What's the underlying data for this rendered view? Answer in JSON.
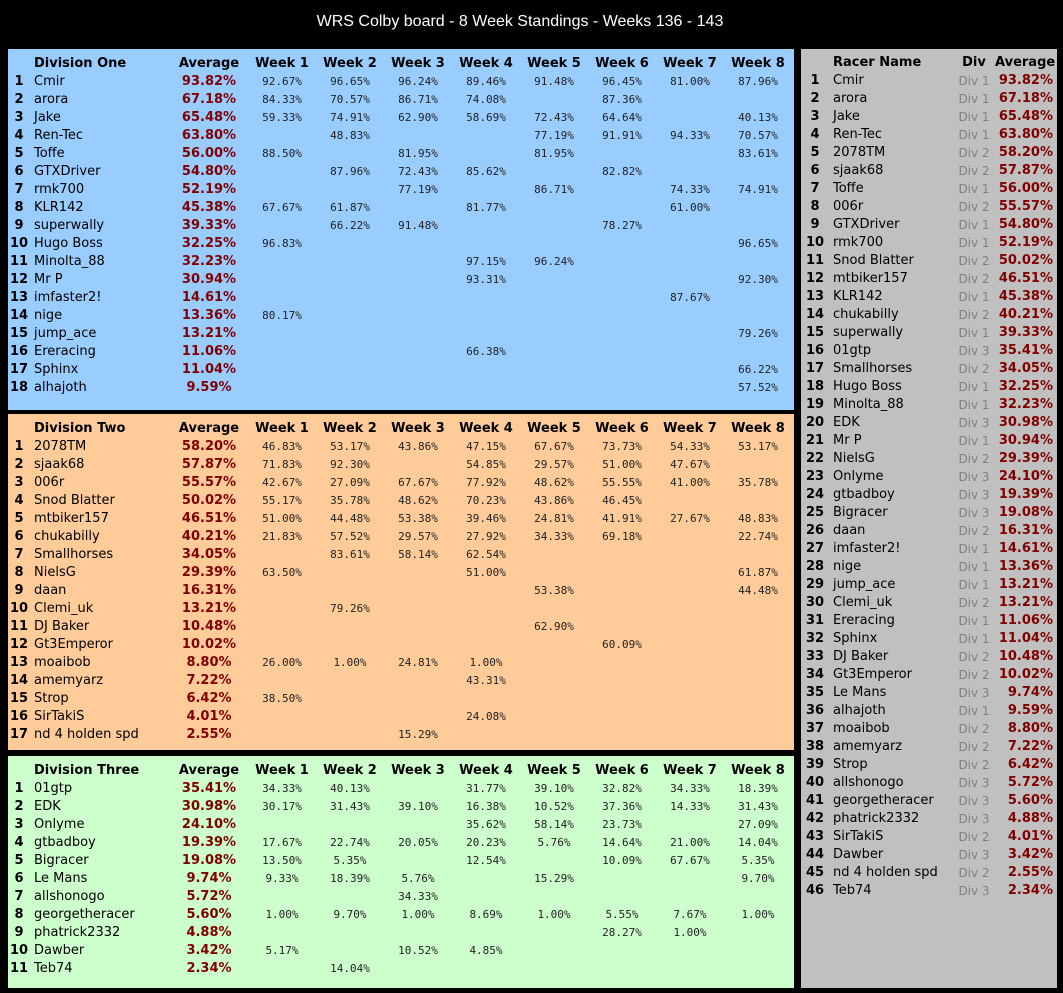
{
  "title": "WRS Colby board - 8 Week Standings - Weeks 136 - 143",
  "colors": {
    "div1": "#99ccff",
    "div2": "#ffcc99",
    "div3": "#ccffcc",
    "overall": "#c0c0c0",
    "avg": "#800000"
  },
  "division_headers": {
    "average": "Average",
    "weeks": [
      "Week 1",
      "Week 2",
      "Week 3",
      "Week 4",
      "Week 5",
      "Week 6",
      "Week 7",
      "Week 8"
    ]
  },
  "divisions": [
    {
      "name": "Division One",
      "rows": [
        [
          "1",
          "Cmir",
          "93.82%",
          "92.67%",
          "96.65%",
          "96.24%",
          "89.46%",
          "91.48%",
          "96.45%",
          "81.00%",
          "87.96%"
        ],
        [
          "2",
          "arora",
          "67.18%",
          "84.33%",
          "70.57%",
          "86.71%",
          "74.08%",
          "",
          "87.36%",
          "",
          ""
        ],
        [
          "3",
          "Jake",
          "65.48%",
          "59.33%",
          "74.91%",
          "62.90%",
          "58.69%",
          "72.43%",
          "64.64%",
          "",
          "40.13%"
        ],
        [
          "4",
          "Ren-Tec",
          "63.80%",
          "",
          "48.83%",
          "",
          "",
          "77.19%",
          "91.91%",
          "94.33%",
          "70.57%"
        ],
        [
          "5",
          "Toffe",
          "56.00%",
          "88.50%",
          "",
          "81.95%",
          "",
          "81.95%",
          "",
          "",
          "83.61%"
        ],
        [
          "6",
          "GTXDriver",
          "54.80%",
          "",
          "87.96%",
          "72.43%",
          "85.62%",
          "",
          "82.82%",
          "",
          ""
        ],
        [
          "7",
          "rmk700",
          "52.19%",
          "",
          "",
          "77.19%",
          "",
          "86.71%",
          "",
          "74.33%",
          "74.91%"
        ],
        [
          "8",
          "KLR142",
          "45.38%",
          "67.67%",
          "61.87%",
          "",
          "81.77%",
          "",
          "",
          "61.00%",
          ""
        ],
        [
          "9",
          "superwally",
          "39.33%",
          "",
          "66.22%",
          "91.48%",
          "",
          "",
          "78.27%",
          "",
          ""
        ],
        [
          "10",
          "Hugo Boss",
          "32.25%",
          "96.83%",
          "",
          "",
          "",
          "",
          "",
          "",
          "96.65%"
        ],
        [
          "11",
          "Minolta_88",
          "32.23%",
          "",
          "",
          "",
          "97.15%",
          "96.24%",
          "",
          "",
          ""
        ],
        [
          "12",
          "Mr P",
          "30.94%",
          "",
          "",
          "",
          "93.31%",
          "",
          "",
          "",
          "92.30%"
        ],
        [
          "13",
          "imfaster2!",
          "14.61%",
          "",
          "",
          "",
          "",
          "",
          "",
          "87.67%",
          ""
        ],
        [
          "14",
          "nige",
          "13.36%",
          "80.17%",
          "",
          "",
          "",
          "",
          "",
          "",
          ""
        ],
        [
          "15",
          "jump_ace",
          "13.21%",
          "",
          "",
          "",
          "",
          "",
          "",
          "",
          "79.26%"
        ],
        [
          "16",
          "Ereracing",
          "11.06%",
          "",
          "",
          "",
          "66.38%",
          "",
          "",
          "",
          ""
        ],
        [
          "17",
          "Sphinx",
          "11.04%",
          "",
          "",
          "",
          "",
          "",
          "",
          "",
          "66.22%"
        ],
        [
          "18",
          "alhajoth",
          "9.59%",
          "",
          "",
          "",
          "",
          "",
          "",
          "",
          "57.52%"
        ]
      ]
    },
    {
      "name": "Division Two",
      "rows": [
        [
          "1",
          "2078TM",
          "58.20%",
          "46.83%",
          "53.17%",
          "43.86%",
          "47.15%",
          "67.67%",
          "73.73%",
          "54.33%",
          "53.17%"
        ],
        [
          "2",
          "sjaak68",
          "57.87%",
          "71.83%",
          "92.30%",
          "",
          "54.85%",
          "29.57%",
          "51.00%",
          "47.67%",
          ""
        ],
        [
          "3",
          "006r",
          "55.57%",
          "42.67%",
          "27.09%",
          "67.67%",
          "77.92%",
          "48.62%",
          "55.55%",
          "41.00%",
          "35.78%"
        ],
        [
          "4",
          "Snod Blatter",
          "50.02%",
          "55.17%",
          "35.78%",
          "48.62%",
          "70.23%",
          "43.86%",
          "46.45%",
          "",
          ""
        ],
        [
          "5",
          "mtbiker157",
          "46.51%",
          "51.00%",
          "44.48%",
          "53.38%",
          "39.46%",
          "24.81%",
          "41.91%",
          "27.67%",
          "48.83%"
        ],
        [
          "6",
          "chukabilly",
          "40.21%",
          "21.83%",
          "57.52%",
          "29.57%",
          "27.92%",
          "34.33%",
          "69.18%",
          "",
          "22.74%"
        ],
        [
          "7",
          "Smallhorses",
          "34.05%",
          "",
          "83.61%",
          "58.14%",
          "62.54%",
          "",
          "",
          "",
          ""
        ],
        [
          "8",
          "NielsG",
          "29.39%",
          "63.50%",
          "",
          "",
          "51.00%",
          "",
          "",
          "",
          "61.87%"
        ],
        [
          "9",
          "daan",
          "16.31%",
          "",
          "",
          "",
          "",
          "53.38%",
          "",
          "",
          "44.48%"
        ],
        [
          "10",
          "Clemi_uk",
          "13.21%",
          "",
          "79.26%",
          "",
          "",
          "",
          "",
          "",
          ""
        ],
        [
          "11",
          "DJ Baker",
          "10.48%",
          "",
          "",
          "",
          "",
          "62.90%",
          "",
          "",
          ""
        ],
        [
          "12",
          "Gt3Emperor",
          "10.02%",
          "",
          "",
          "",
          "",
          "",
          "60.09%",
          "",
          ""
        ],
        [
          "13",
          "moaibob",
          "8.80%",
          "26.00%",
          "1.00%",
          "24.81%",
          "1.00%",
          "",
          "",
          "",
          ""
        ],
        [
          "14",
          "amemyarz",
          "7.22%",
          "",
          "",
          "",
          "43.31%",
          "",
          "",
          "",
          ""
        ],
        [
          "15",
          "Strop",
          "6.42%",
          "38.50%",
          "",
          "",
          "",
          "",
          "",
          "",
          ""
        ],
        [
          "16",
          "SirTakiS",
          "4.01%",
          "",
          "",
          "",
          "24.08%",
          "",
          "",
          "",
          ""
        ],
        [
          "17",
          "nd 4 holden spd",
          "2.55%",
          "",
          "",
          "15.29%",
          "",
          "",
          "",
          "",
          ""
        ]
      ]
    },
    {
      "name": "Division Three",
      "rows": [
        [
          "1",
          "01gtp",
          "35.41%",
          "34.33%",
          "40.13%",
          "",
          "31.77%",
          "39.10%",
          "32.82%",
          "34.33%",
          "18.39%"
        ],
        [
          "2",
          "EDK",
          "30.98%",
          "30.17%",
          "31.43%",
          "39.10%",
          "16.38%",
          "10.52%",
          "37.36%",
          "14.33%",
          "31.43%"
        ],
        [
          "3",
          "Onlyme",
          "24.10%",
          "",
          "",
          "",
          "35.62%",
          "58.14%",
          "23.73%",
          "",
          "27.09%"
        ],
        [
          "4",
          "gtbadboy",
          "19.39%",
          "17.67%",
          "22.74%",
          "20.05%",
          "20.23%",
          "5.76%",
          "14.64%",
          "21.00%",
          "14.04%"
        ],
        [
          "5",
          "Bigracer",
          "19.08%",
          "13.50%",
          "5.35%",
          "",
          "12.54%",
          "",
          "10.09%",
          "67.67%",
          "5.35%"
        ],
        [
          "6",
          "Le Mans",
          "9.74%",
          "9.33%",
          "18.39%",
          "5.76%",
          "",
          "15.29%",
          "",
          "",
          "9.70%"
        ],
        [
          "7",
          "allshonogo",
          "5.72%",
          "",
          "",
          "34.33%",
          "",
          "",
          "",
          "",
          ""
        ],
        [
          "8",
          "georgetheracer",
          "5.60%",
          "1.00%",
          "9.70%",
          "1.00%",
          "8.69%",
          "1.00%",
          "5.55%",
          "7.67%",
          "1.00%"
        ],
        [
          "9",
          "phatrick2332",
          "4.88%",
          "",
          "",
          "",
          "",
          "",
          "28.27%",
          "1.00%",
          ""
        ],
        [
          "10",
          "Dawber",
          "3.42%",
          "5.17%",
          "",
          "10.52%",
          "4.85%",
          "",
          "",
          "",
          ""
        ],
        [
          "11",
          "Teb74",
          "2.34%",
          "",
          "14.04%",
          "",
          "",
          "",
          "",
          "",
          ""
        ]
      ]
    }
  ],
  "overall": {
    "headers": {
      "name": "Racer Name",
      "div": "Div",
      "average": "Average"
    },
    "rows": [
      [
        "1",
        "Cmir",
        "Div 1",
        "93.82%"
      ],
      [
        "2",
        "arora",
        "Div 1",
        "67.18%"
      ],
      [
        "3",
        "Jake",
        "Div 1",
        "65.48%"
      ],
      [
        "4",
        "Ren-Tec",
        "Div 1",
        "63.80%"
      ],
      [
        "5",
        "2078TM",
        "Div 2",
        "58.20%"
      ],
      [
        "6",
        "sjaak68",
        "Div 2",
        "57.87%"
      ],
      [
        "7",
        "Toffe",
        "Div 1",
        "56.00%"
      ],
      [
        "8",
        "006r",
        "Div 2",
        "55.57%"
      ],
      [
        "9",
        "GTXDriver",
        "Div 1",
        "54.80%"
      ],
      [
        "10",
        "rmk700",
        "Div 1",
        "52.19%"
      ],
      [
        "11",
        "Snod Blatter",
        "Div 2",
        "50.02%"
      ],
      [
        "12",
        "mtbiker157",
        "Div 2",
        "46.51%"
      ],
      [
        "13",
        "KLR142",
        "Div 1",
        "45.38%"
      ],
      [
        "14",
        "chukabilly",
        "Div 2",
        "40.21%"
      ],
      [
        "15",
        "superwally",
        "Div 1",
        "39.33%"
      ],
      [
        "16",
        "01gtp",
        "Div 3",
        "35.41%"
      ],
      [
        "17",
        "Smallhorses",
        "Div 2",
        "34.05%"
      ],
      [
        "18",
        "Hugo Boss",
        "Div 1",
        "32.25%"
      ],
      [
        "19",
        "Minolta_88",
        "Div 1",
        "32.23%"
      ],
      [
        "20",
        "EDK",
        "Div 3",
        "30.98%"
      ],
      [
        "21",
        "Mr P",
        "Div 1",
        "30.94%"
      ],
      [
        "22",
        "NielsG",
        "Div 2",
        "29.39%"
      ],
      [
        "23",
        "Onlyme",
        "Div 3",
        "24.10%"
      ],
      [
        "24",
        "gtbadboy",
        "Div 3",
        "19.39%"
      ],
      [
        "25",
        "Bigracer",
        "Div 3",
        "19.08%"
      ],
      [
        "26",
        "daan",
        "Div 2",
        "16.31%"
      ],
      [
        "27",
        "imfaster2!",
        "Div 1",
        "14.61%"
      ],
      [
        "28",
        "nige",
        "Div 1",
        "13.36%"
      ],
      [
        "29",
        "jump_ace",
        "Div 1",
        "13.21%"
      ],
      [
        "30",
        "Clemi_uk",
        "Div 2",
        "13.21%"
      ],
      [
        "31",
        "Ereracing",
        "Div 1",
        "11.06%"
      ],
      [
        "32",
        "Sphinx",
        "Div 1",
        "11.04%"
      ],
      [
        "33",
        "DJ Baker",
        "Div 2",
        "10.48%"
      ],
      [
        "34",
        "Gt3Emperor",
        "Div 2",
        "10.02%"
      ],
      [
        "35",
        "Le Mans",
        "Div 3",
        "9.74%"
      ],
      [
        "36",
        "alhajoth",
        "Div 1",
        "9.59%"
      ],
      [
        "37",
        "moaibob",
        "Div 2",
        "8.80%"
      ],
      [
        "38",
        "amemyarz",
        "Div 2",
        "7.22%"
      ],
      [
        "39",
        "Strop",
        "Div 2",
        "6.42%"
      ],
      [
        "40",
        "allshonogo",
        "Div 3",
        "5.72%"
      ],
      [
        "41",
        "georgetheracer",
        "Div 3",
        "5.60%"
      ],
      [
        "42",
        "phatrick2332",
        "Div 3",
        "4.88%"
      ],
      [
        "43",
        "SirTakiS",
        "Div 2",
        "4.01%"
      ],
      [
        "44",
        "Dawber",
        "Div 3",
        "3.42%"
      ],
      [
        "45",
        "nd 4 holden spd",
        "Div 2",
        "2.55%"
      ],
      [
        "46",
        "Teb74",
        "Div 3",
        "2.34%"
      ]
    ]
  }
}
